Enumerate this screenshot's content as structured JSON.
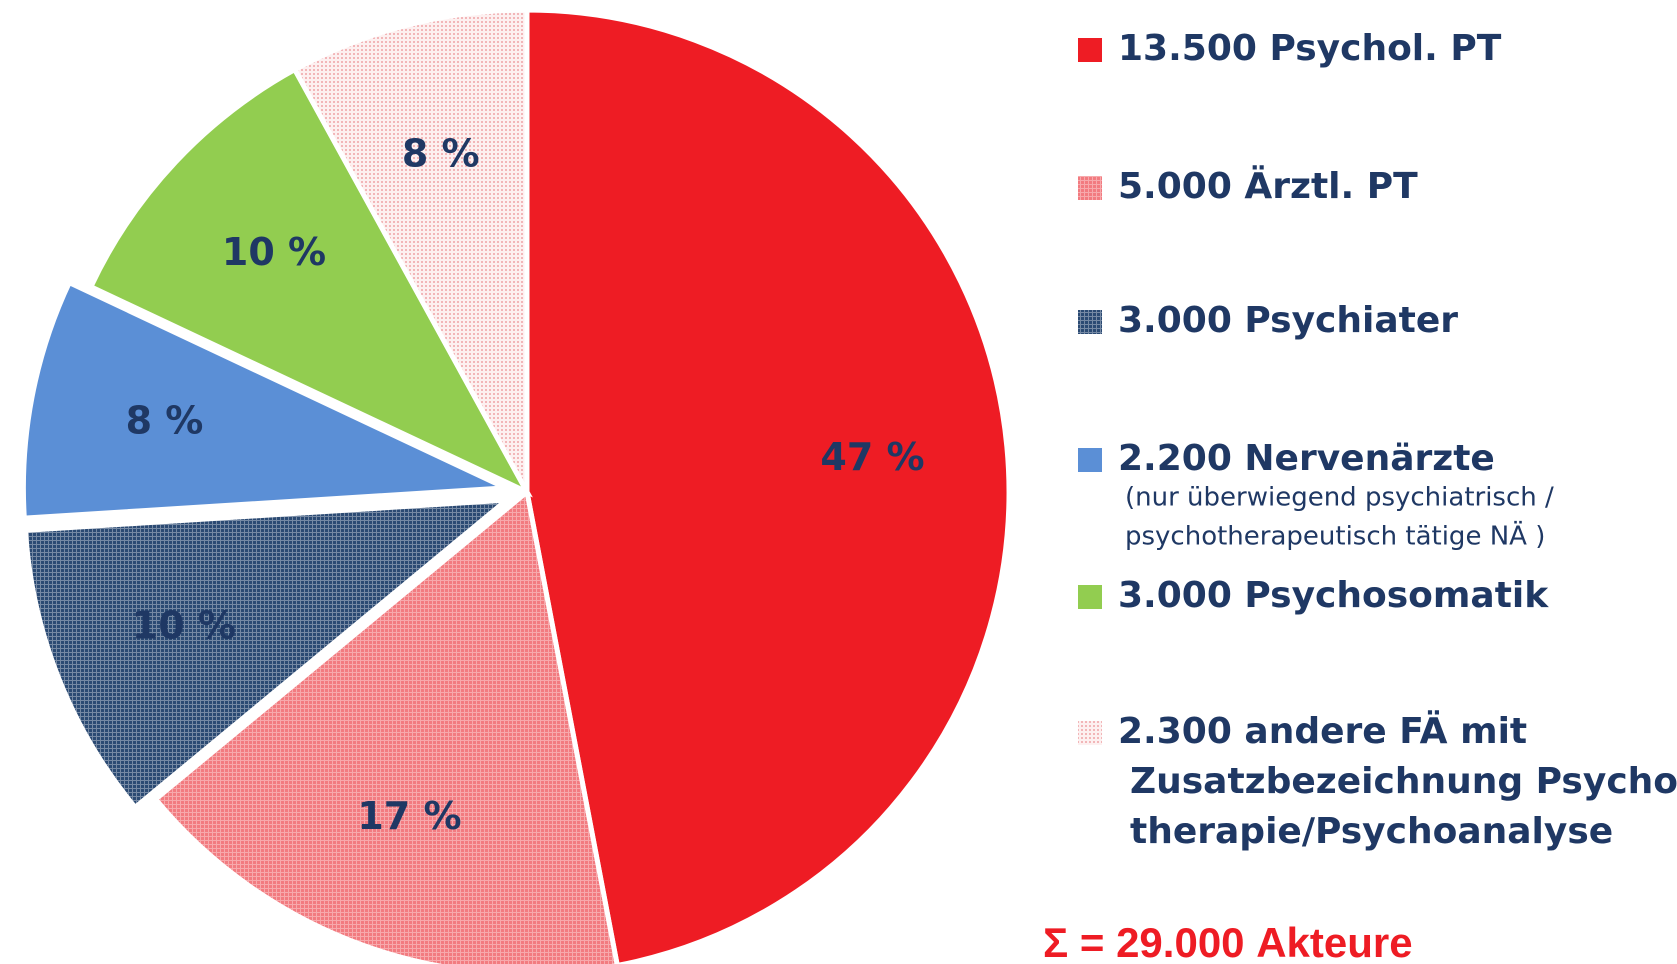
{
  "chart_data": {
    "type": "pie",
    "categories": [
      [
        "13.500 Psychol. PT"
      ],
      [
        "5.000 Ärztl. PT"
      ],
      [
        "3.000 Psychiater"
      ],
      [
        "2.200 Nervenärzte"
      ],
      [
        "3.000 Psychosomatik"
      ],
      [
        "2.300 andere FÄ mit",
        "Zusatzbezeichnung Psycho-",
        "therapie/Psychoanalyse"
      ]
    ],
    "legend_note": [
      "(nur überwiegend psychiatrisch /",
      "psychotherapeutisch tätige NÄ )"
    ],
    "values": [
      47,
      17,
      10,
      8,
      10,
      8
    ],
    "value_labels": [
      "47 %",
      "17 %",
      "10 %",
      "8 %",
      "10 %",
      "8 %"
    ],
    "colors": [
      "#ee1c24",
      "#f27b80",
      "#2b4a73",
      "#5b8fd6",
      "#92cd50",
      "#fbdada"
    ],
    "fill_patterns": [
      "solid",
      "grid",
      "grid",
      "solid",
      "solid",
      "dots"
    ],
    "exploded": [
      false,
      false,
      true,
      true,
      false,
      false
    ],
    "total": "Σ = 29.000 Akteure",
    "legend": "right"
  }
}
